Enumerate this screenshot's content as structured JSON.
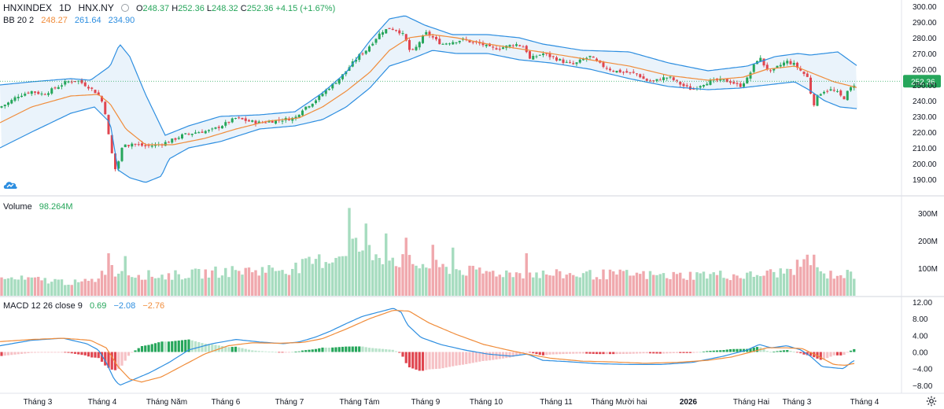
{
  "header": {
    "symbol": "HNXINDEX",
    "interval": "1D",
    "exchange": "HNX.NY",
    "ohlc": {
      "open_label": "O",
      "open": "248.37",
      "high_label": "H",
      "high": "252.36",
      "low_label": "L",
      "low": "248.32",
      "close_label": "C",
      "close": "252.36",
      "change": "+4.15 (+1.67%)"
    }
  },
  "indicators": {
    "bb": {
      "label": "BB 20 2",
      "basis": "248.27",
      "upper": "261.64",
      "lower": "234.90"
    },
    "volume": {
      "label": "Volume",
      "value": "98.264M"
    },
    "macd": {
      "label": "MACD 12 26 close 9",
      "hist": "0.69",
      "macd": "−2.08",
      "signal": "−2.76"
    }
  },
  "colors": {
    "up": "#26a65b",
    "down": "#e0454f",
    "vol_up": "#a6dcbf",
    "vol_down": "#f0a8ad",
    "bb_basis": "#f08c3a",
    "bb_band": "#2d8ee0",
    "bb_fill": "#e8f2fb",
    "macd_line": "#2d8ee0",
    "signal_line": "#f08c3a",
    "hist_up_strong": "#26a65b",
    "hist_up_weak": "#b9e3cb",
    "hist_down_strong": "#e0454f",
    "hist_down_weak": "#f6c1c5",
    "last_price_tag": "#26a65b"
  },
  "icons": {
    "logo": "tradingview-cloud-icon",
    "settings": "gear-icon"
  },
  "chart_data": {
    "type": "candlestick",
    "x_labels": [
      "Tháng 3",
      "Tháng 4",
      "Tháng Năm",
      "Tháng 6",
      "Tháng 7",
      "Tháng Tám",
      "Tháng 9",
      "Tháng 10",
      "Tháng 11",
      "Tháng Mười hai",
      "2026",
      "Tháng Hai",
      "Tháng 3",
      "Tháng 4"
    ],
    "x_bold": [
      false,
      false,
      false,
      false,
      false,
      false,
      false,
      false,
      false,
      false,
      true,
      false,
      false,
      false
    ],
    "price_axis": {
      "ticks": [
        "300.00",
        "290.00",
        "280.00",
        "270.00",
        "260.00",
        "250.00",
        "240.00",
        "230.00",
        "220.00",
        "210.00",
        "200.00",
        "190.00"
      ],
      "ylim": [
        185,
        300
      ]
    },
    "last_price": "252.36",
    "volume_axis": {
      "ticks": [
        "300M",
        "200M",
        "100M"
      ]
    },
    "macd_axis": {
      "ticks": [
        "12.00",
        "8.00",
        "4.00",
        "0.00",
        "−4.00",
        "−8.00"
      ],
      "ylim": [
        -9.5,
        12.5
      ]
    },
    "close_path": [
      [
        0,
        236
      ],
      [
        12,
        239
      ],
      [
        22,
        243
      ],
      [
        40,
        246
      ],
      [
        55,
        244
      ],
      [
        70,
        248
      ],
      [
        85,
        252
      ],
      [
        98,
        253
      ],
      [
        105,
        251
      ],
      [
        112,
        249
      ],
      [
        120,
        246
      ],
      [
        128,
        242
      ],
      [
        134,
        232
      ],
      [
        138,
        218
      ],
      [
        142,
        207
      ],
      [
        146,
        196
      ],
      [
        150,
        200
      ],
      [
        154,
        208
      ],
      [
        158,
        214
      ],
      [
        162,
        211
      ],
      [
        166,
        213
      ],
      [
        175,
        212
      ],
      [
        185,
        211
      ],
      [
        200,
        212
      ],
      [
        215,
        214
      ],
      [
        232,
        218
      ],
      [
        250,
        220
      ],
      [
        268,
        221
      ],
      [
        285,
        225
      ],
      [
        300,
        229
      ],
      [
        315,
        227
      ],
      [
        330,
        226
      ],
      [
        345,
        227
      ],
      [
        360,
        228
      ],
      [
        375,
        229
      ],
      [
        385,
        235
      ],
      [
        395,
        238
      ],
      [
        405,
        242
      ],
      [
        415,
        247
      ],
      [
        425,
        251
      ],
      [
        435,
        256
      ],
      [
        445,
        262
      ],
      [
        455,
        268
      ],
      [
        465,
        272
      ],
      [
        475,
        278
      ],
      [
        485,
        284
      ],
      [
        495,
        286
      ],
      [
        505,
        285
      ],
      [
        512,
        282
      ],
      [
        518,
        276
      ],
      [
        522,
        270
      ],
      [
        528,
        273
      ],
      [
        535,
        279
      ],
      [
        542,
        283
      ],
      [
        548,
        281
      ],
      [
        555,
        278
      ],
      [
        562,
        276
      ],
      [
        570,
        277
      ],
      [
        580,
        278
      ],
      [
        590,
        279
      ],
      [
        600,
        277
      ],
      [
        612,
        276
      ],
      [
        625,
        273
      ],
      [
        640,
        274
      ],
      [
        655,
        276
      ],
      [
        668,
        274
      ],
      [
        672,
        266
      ],
      [
        680,
        268
      ],
      [
        690,
        270
      ],
      [
        700,
        268
      ],
      [
        710,
        266
      ],
      [
        720,
        264
      ],
      [
        730,
        263
      ],
      [
        740,
        266
      ],
      [
        750,
        268
      ],
      [
        760,
        264
      ],
      [
        770,
        261
      ],
      [
        780,
        259
      ],
      [
        795,
        258
      ],
      [
        810,
        257
      ],
      [
        820,
        253
      ],
      [
        830,
        252
      ],
      [
        840,
        254
      ],
      [
        850,
        255
      ],
      [
        860,
        252
      ],
      [
        870,
        249
      ],
      [
        880,
        247
      ],
      [
        890,
        250
      ],
      [
        900,
        252
      ],
      [
        915,
        253
      ],
      [
        930,
        252
      ],
      [
        940,
        249
      ],
      [
        950,
        254
      ],
      [
        960,
        264
      ],
      [
        965,
        268
      ],
      [
        972,
        262
      ],
      [
        980,
        258
      ],
      [
        990,
        262
      ],
      [
        1000,
        265
      ],
      [
        1010,
        263
      ],
      [
        1020,
        258
      ],
      [
        1028,
        254
      ],
      [
        1033,
        236
      ],
      [
        1038,
        242
      ],
      [
        1045,
        246
      ],
      [
        1055,
        247
      ],
      [
        1065,
        245
      ],
      [
        1072,
        241
      ],
      [
        1078,
        246
      ],
      [
        1085,
        250
      ],
      [
        1090,
        252.36
      ]
    ],
    "bb_upper_path": [
      [
        0,
        250
      ],
      [
        40,
        252
      ],
      [
        90,
        254
      ],
      [
        115,
        253
      ],
      [
        140,
        262
      ],
      [
        152,
        276
      ],
      [
        165,
        268
      ],
      [
        185,
        244
      ],
      [
        210,
        218
      ],
      [
        240,
        224
      ],
      [
        280,
        230
      ],
      [
        330,
        231
      ],
      [
        375,
        233
      ],
      [
        410,
        245
      ],
      [
        440,
        258
      ],
      [
        470,
        278
      ],
      [
        495,
        292
      ],
      [
        515,
        294
      ],
      [
        540,
        288
      ],
      [
        575,
        282
      ],
      [
        620,
        282
      ],
      [
        660,
        280
      ],
      [
        690,
        276
      ],
      [
        740,
        272
      ],
      [
        800,
        271
      ],
      [
        850,
        264
      ],
      [
        900,
        259
      ],
      [
        950,
        262
      ],
      [
        985,
        268
      ],
      [
        1015,
        270
      ],
      [
        1030,
        269
      ],
      [
        1065,
        271
      ],
      [
        1090,
        262
      ]
    ],
    "bb_basis_path": [
      [
        0,
        226
      ],
      [
        40,
        236
      ],
      [
        90,
        243
      ],
      [
        125,
        244
      ],
      [
        140,
        238
      ],
      [
        160,
        222
      ],
      [
        185,
        212
      ],
      [
        220,
        212
      ],
      [
        260,
        216
      ],
      [
        300,
        222
      ],
      [
        340,
        227
      ],
      [
        380,
        229
      ],
      [
        410,
        236
      ],
      [
        440,
        246
      ],
      [
        470,
        258
      ],
      [
        495,
        272
      ],
      [
        520,
        280
      ],
      [
        550,
        282
      ],
      [
        580,
        280
      ],
      [
        620,
        276
      ],
      [
        660,
        273
      ],
      [
        700,
        270
      ],
      [
        750,
        266
      ],
      [
        800,
        262
      ],
      [
        850,
        256
      ],
      [
        900,
        253
      ],
      [
        945,
        255
      ],
      [
        975,
        260
      ],
      [
        1010,
        262
      ],
      [
        1030,
        258
      ],
      [
        1060,
        252
      ],
      [
        1090,
        248.27
      ]
    ],
    "bb_lower_path": [
      [
        0,
        210
      ],
      [
        40,
        220
      ],
      [
        90,
        232
      ],
      [
        120,
        236
      ],
      [
        140,
        226
      ],
      [
        150,
        196
      ],
      [
        165,
        191
      ],
      [
        185,
        188
      ],
      [
        205,
        192
      ],
      [
        215,
        203
      ],
      [
        240,
        210
      ],
      [
        280,
        214
      ],
      [
        330,
        222
      ],
      [
        375,
        224
      ],
      [
        410,
        228
      ],
      [
        440,
        236
      ],
      [
        470,
        248
      ],
      [
        495,
        262
      ],
      [
        520,
        266
      ],
      [
        550,
        272
      ],
      [
        580,
        270
      ],
      [
        620,
        270
      ],
      [
        660,
        266
      ],
      [
        700,
        264
      ],
      [
        750,
        260
      ],
      [
        800,
        254
      ],
      [
        850,
        249
      ],
      [
        900,
        247
      ],
      [
        940,
        248
      ],
      [
        975,
        250
      ],
      [
        1010,
        252
      ],
      [
        1028,
        247
      ],
      [
        1048,
        240
      ],
      [
        1068,
        236
      ],
      [
        1090,
        234.9
      ]
    ],
    "volume_path": [
      [
        0,
        60
      ],
      [
        60,
        55
      ],
      [
        100,
        45
      ],
      [
        120,
        55
      ],
      [
        135,
        95
      ],
      [
        145,
        90
      ],
      [
        160,
        80
      ],
      [
        200,
        70
      ],
      [
        240,
        75
      ],
      [
        280,
        85
      ],
      [
        320,
        90
      ],
      [
        360,
        95
      ],
      [
        380,
        100
      ],
      [
        400,
        120
      ],
      [
        420,
        130
      ],
      [
        435,
        150
      ],
      [
        445,
        200
      ],
      [
        455,
        170
      ],
      [
        465,
        160
      ],
      [
        480,
        145
      ],
      [
        500,
        130
      ],
      [
        515,
        120
      ],
      [
        530,
        110
      ],
      [
        560,
        100
      ],
      [
        600,
        85
      ],
      [
        650,
        80
      ],
      [
        700,
        75
      ],
      [
        750,
        75
      ],
      [
        800,
        75
      ],
      [
        850,
        70
      ],
      [
        900,
        75
      ],
      [
        950,
        70
      ],
      [
        1000,
        85
      ],
      [
        1020,
        110
      ],
      [
        1030,
        100
      ],
      [
        1045,
        75
      ],
      [
        1090,
        75
      ]
    ],
    "volume_spikes": [
      [
        138,
        150
      ],
      [
        158,
        140
      ],
      [
        446,
        310
      ],
      [
        465,
        255
      ],
      [
        490,
        220
      ],
      [
        515,
        205
      ],
      [
        550,
        180
      ],
      [
        575,
        170
      ],
      [
        670,
        150
      ],
      [
        1025,
        145
      ],
      [
        1035,
        145
      ]
    ],
    "macd_path": [
      [
        0,
        1.5
      ],
      [
        40,
        2.8
      ],
      [
        80,
        3.3
      ],
      [
        110,
        2.0
      ],
      [
        125,
        0.5
      ],
      [
        135,
        -2.5
      ],
      [
        145,
        -6.5
      ],
      [
        152,
        -8.0
      ],
      [
        165,
        -7.0
      ],
      [
        190,
        -5.0
      ],
      [
        215,
        -2.5
      ],
      [
        240,
        0.5
      ],
      [
        270,
        2.0
      ],
      [
        300,
        3.0
      ],
      [
        330,
        2.4
      ],
      [
        360,
        2.0
      ],
      [
        380,
        2.4
      ],
      [
        400,
        3.5
      ],
      [
        420,
        5.0
      ],
      [
        440,
        6.8
      ],
      [
        460,
        8.5
      ],
      [
        480,
        9.5
      ],
      [
        500,
        10.5
      ],
      [
        510,
        9.5
      ],
      [
        518,
        6.5
      ],
      [
        535,
        3.5
      ],
      [
        560,
        1.8
      ],
      [
        590,
        0.5
      ],
      [
        620,
        -0.5
      ],
      [
        650,
        -1.0
      ],
      [
        670,
        -0.5
      ],
      [
        690,
        -2.0
      ],
      [
        720,
        -2.3
      ],
      [
        760,
        -2.8
      ],
      [
        800,
        -3.0
      ],
      [
        840,
        -3.0
      ],
      [
        880,
        -2.5
      ],
      [
        920,
        -1.0
      ],
      [
        950,
        0.5
      ],
      [
        965,
        1.8
      ],
      [
        980,
        1.0
      ],
      [
        1000,
        1.5
      ],
      [
        1018,
        0.5
      ],
      [
        1030,
        -1.0
      ],
      [
        1045,
        -3.5
      ],
      [
        1060,
        -3.8
      ],
      [
        1072,
        -4.0
      ],
      [
        1085,
        -2.08
      ]
    ],
    "signal_path": [
      [
        0,
        2.5
      ],
      [
        40,
        3.0
      ],
      [
        80,
        3.3
      ],
      [
        115,
        2.8
      ],
      [
        135,
        1.0
      ],
      [
        150,
        -3.5
      ],
      [
        165,
        -6.5
      ],
      [
        180,
        -7.2
      ],
      [
        205,
        -6.0
      ],
      [
        230,
        -3.5
      ],
      [
        260,
        -0.5
      ],
      [
        290,
        1.5
      ],
      [
        320,
        2.2
      ],
      [
        355,
        2.1
      ],
      [
        385,
        2.3
      ],
      [
        410,
        3.2
      ],
      [
        440,
        5.5
      ],
      [
        470,
        8.0
      ],
      [
        500,
        10.0
      ],
      [
        520,
        9.8
      ],
      [
        545,
        7.0
      ],
      [
        580,
        4.2
      ],
      [
        615,
        1.8
      ],
      [
        645,
        0.5
      ],
      [
        670,
        -0.5
      ],
      [
        700,
        -1.5
      ],
      [
        740,
        -2.2
      ],
      [
        780,
        -2.4
      ],
      [
        820,
        -2.7
      ],
      [
        860,
        -2.5
      ],
      [
        900,
        -2.0
      ],
      [
        930,
        -1.2
      ],
      [
        955,
        0.0
      ],
      [
        975,
        1.0
      ],
      [
        1000,
        1.0
      ],
      [
        1020,
        0.8
      ],
      [
        1040,
        -1.0
      ],
      [
        1060,
        -3.0
      ],
      [
        1075,
        -3.2
      ],
      [
        1085,
        -2.76
      ]
    ],
    "macd_hist_last": "0.69"
  }
}
